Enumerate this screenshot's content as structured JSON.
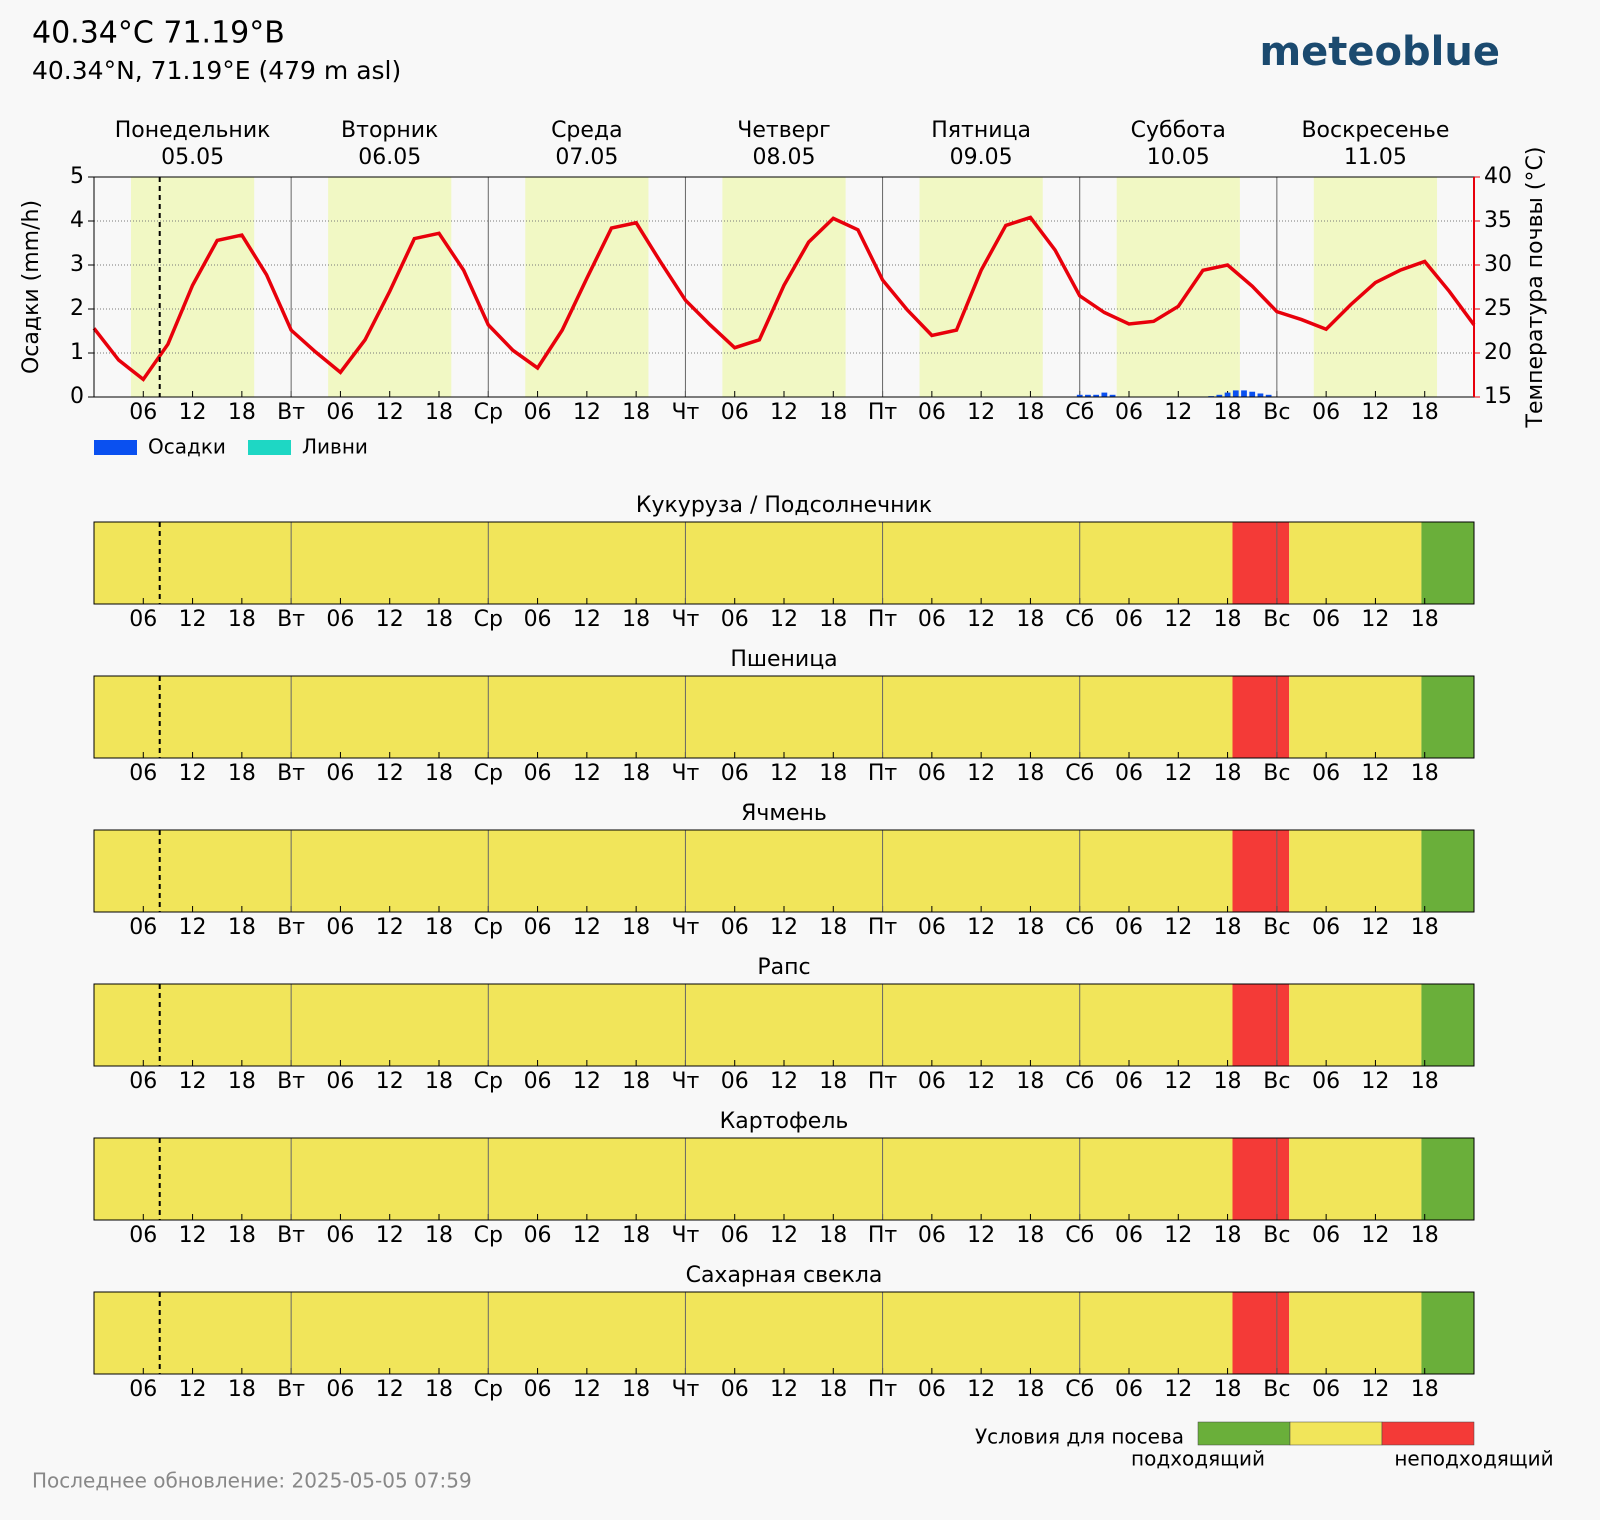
{
  "header": {
    "title": "40.34°C 71.19°B",
    "subtitle": "40.34°N, 71.19°E (479 m asl)",
    "logo": "meteoblue"
  },
  "chart_data": [
    {
      "type": "line",
      "days": [
        {
          "name": "Понедельник",
          "date": "05.05",
          "color": "#000000"
        },
        {
          "name": "Вторник",
          "date": "06.05",
          "color": "#000000"
        },
        {
          "name": "Среда",
          "date": "07.05",
          "color": "#000000"
        },
        {
          "name": "Четверг",
          "date": "08.05",
          "color": "#000000"
        },
        {
          "name": "Пятница",
          "date": "09.05",
          "color": "#000000"
        },
        {
          "name": "Суббота",
          "date": "10.05",
          "color": "#e00000"
        },
        {
          "name": "Воскресенье",
          "date": "11.05",
          "color": "#e00000"
        }
      ],
      "ylabel": "Осадки (mm/h)",
      "y2label": "Температура почвы (°C)",
      "xlim": [
        0,
        168
      ],
      "xticks": [
        {
          "value": 6,
          "label": "06"
        },
        12,
        18,
        {
          "value": 24,
          "label": "Вт"
        },
        {
          "value": 30,
          "label": "06"
        },
        {
          "value": 36,
          "label": "12"
        },
        {
          "value": 42,
          "label": "18"
        },
        {
          "value": 48,
          "label": "Ср"
        },
        {
          "value": 54,
          "label": "06"
        },
        {
          "value": 60,
          "label": "12"
        },
        {
          "value": 66,
          "label": "18"
        },
        {
          "value": 72,
          "label": "Чт"
        },
        {
          "value": 78,
          "label": "06"
        },
        {
          "value": 84,
          "label": "12"
        },
        {
          "value": 90,
          "label": "18"
        },
        {
          "value": 96,
          "label": "Пт"
        },
        {
          "value": 102,
          "label": "06"
        },
        {
          "value": 108,
          "label": "12"
        },
        {
          "value": 114,
          "label": "18"
        },
        {
          "value": 120,
          "label": "Сб"
        },
        {
          "value": 126,
          "label": "06"
        },
        {
          "value": 132,
          "label": "12"
        },
        {
          "value": 138,
          "label": "18"
        },
        {
          "value": 144,
          "label": "Вс"
        },
        {
          "value": 150,
          "label": "06"
        },
        {
          "value": 156,
          "label": "12"
        },
        {
          "value": 162,
          "label": "18"
        }
      ],
      "ylim": [
        0,
        5
      ],
      "yticks": [
        0,
        1,
        2,
        3,
        4,
        5
      ],
      "y2lim": [
        15,
        40
      ],
      "y2ticks": [
        15,
        20,
        25,
        30,
        35,
        40
      ],
      "grid": true,
      "daylight": [
        4.5,
        19.5
      ],
      "now": 8,
      "series": [
        {
          "name": "Осадки",
          "color": "#0a50f0",
          "x": [
            120,
            121,
            122,
            123,
            124,
            136,
            137,
            138,
            139,
            140,
            141,
            142,
            143
          ],
          "values": [
            0.05,
            0.05,
            0.05,
            0.1,
            0.05,
            0.02,
            0.05,
            0.1,
            0.15,
            0.15,
            0.12,
            0.08,
            0.05
          ]
        },
        {
          "name": "Ливни",
          "color": "#1ed7c4",
          "x": [],
          "values": []
        },
        {
          "color": "#e8000b",
          "axis": "y2",
          "x": [
            0,
            3,
            6,
            9,
            12,
            15,
            18,
            21,
            24,
            27,
            30,
            33,
            36,
            39,
            42,
            45,
            48,
            51,
            54,
            57,
            60,
            63,
            66,
            69,
            72,
            75,
            78,
            81,
            84,
            87,
            90,
            93,
            96,
            99,
            102,
            105,
            108,
            111,
            114,
            117,
            120,
            123,
            126,
            129,
            132,
            135,
            138,
            141,
            144,
            147,
            150,
            153,
            156,
            159,
            162,
            165,
            168
          ],
          "values": [
            22.8,
            19.2,
            17.0,
            21.0,
            27.7,
            32.8,
            33.4,
            28.9,
            22.6,
            20.1,
            17.8,
            21.5,
            27.0,
            33.0,
            33.6,
            29.4,
            23.2,
            20.3,
            18.3,
            22.6,
            28.5,
            34.2,
            34.8,
            30.3,
            26.0,
            23.2,
            20.6,
            21.5,
            27.7,
            32.6,
            35.3,
            34.0,
            28.3,
            24.9,
            22.0,
            22.6,
            29.4,
            34.5,
            35.4,
            31.7,
            26.5,
            24.6,
            23.3,
            23.6,
            25.3,
            29.4,
            30.0,
            27.6,
            24.7,
            23.8,
            22.7,
            25.5,
            28.0,
            29.4,
            30.4,
            27.0,
            23.2
          ]
        }
      ]
    },
    {
      "type": "timeline",
      "title": "Кукуруза / Подсолнечник",
      "segments": [
        {
          "start": 0,
          "end": 138.6,
          "level": 1
        },
        {
          "start": 138.6,
          "end": 145.5,
          "level": 2
        },
        {
          "start": 145.5,
          "end": 161.6,
          "level": 1
        },
        {
          "start": 161.6,
          "end": 168,
          "level": 0
        }
      ]
    },
    {
      "type": "timeline",
      "title": "Пшеница",
      "segments": [
        {
          "start": 0,
          "end": 138.6,
          "level": 1
        },
        {
          "start": 138.6,
          "end": 145.5,
          "level": 2
        },
        {
          "start": 145.5,
          "end": 161.6,
          "level": 1
        },
        {
          "start": 161.6,
          "end": 168,
          "level": 0
        }
      ]
    },
    {
      "type": "timeline",
      "title": "Ячмень",
      "segments": [
        {
          "start": 0,
          "end": 138.6,
          "level": 1
        },
        {
          "start": 138.6,
          "end": 145.5,
          "level": 2
        },
        {
          "start": 145.5,
          "end": 161.6,
          "level": 1
        },
        {
          "start": 161.6,
          "end": 168,
          "level": 0
        }
      ]
    },
    {
      "type": "timeline",
      "title": "Рапс",
      "segments": [
        {
          "start": 0,
          "end": 138.6,
          "level": 1
        },
        {
          "start": 138.6,
          "end": 145.5,
          "level": 2
        },
        {
          "start": 145.5,
          "end": 161.6,
          "level": 1
        },
        {
          "start": 161.6,
          "end": 168,
          "level": 0
        }
      ]
    },
    {
      "type": "timeline",
      "title": "Картофель",
      "segments": [
        {
          "start": 0,
          "end": 138.6,
          "level": 1
        },
        {
          "start": 138.6,
          "end": 145.5,
          "level": 2
        },
        {
          "start": 145.5,
          "end": 161.6,
          "level": 1
        },
        {
          "start": 161.6,
          "end": 168,
          "level": 0
        }
      ]
    },
    {
      "type": "timeline",
      "title": "Сахарная свекла",
      "segments": [
        {
          "start": 0,
          "end": 138.6,
          "level": 1
        },
        {
          "start": 138.6,
          "end": 145.5,
          "level": 2
        },
        {
          "start": 145.5,
          "end": 161.6,
          "level": 1
        },
        {
          "start": 161.6,
          "end": 168,
          "level": 0
        }
      ]
    }
  ],
  "legend": {
    "title": "Условия для посева",
    "colors": [
      "#6aaf3a",
      "#f1e55a",
      "#f43a37"
    ],
    "labels": [
      "подходящий",
      "неподходящий"
    ]
  },
  "footer": "Последнее обновление: 2025-05-05 07:59"
}
